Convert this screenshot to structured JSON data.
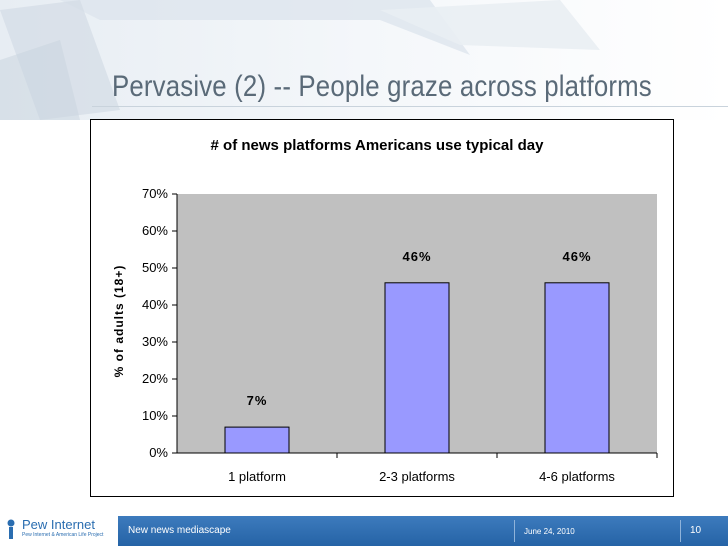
{
  "slide": {
    "title": "Pervasive (2) -- People graze across platforms"
  },
  "footer": {
    "left_text": "New news mediascape",
    "date": "June 24, 2010",
    "page": "10",
    "logo": "Pew Internet",
    "logo_sub": "Pew Internet & American Life Project"
  },
  "colors": {
    "bar_fill": "#9999ff",
    "plot_bg": "#c0c0c0",
    "footer_blue": "#2a6db0"
  },
  "chart_data": {
    "type": "bar",
    "title": "# of news platforms Americans use typical day",
    "xlabel": "",
    "ylabel": "% of adults (18+)",
    "categories": [
      "1 platform",
      "2-3 platforms",
      "4-6 platforms"
    ],
    "values": [
      7,
      46,
      46
    ],
    "data_labels": [
      "7%",
      "46%",
      "46%"
    ],
    "yticks": [
      "0%",
      "10%",
      "20%",
      "30%",
      "40%",
      "50%",
      "60%",
      "70%"
    ],
    "ylim": [
      0,
      70
    ],
    "grid": false,
    "legend": "none"
  }
}
